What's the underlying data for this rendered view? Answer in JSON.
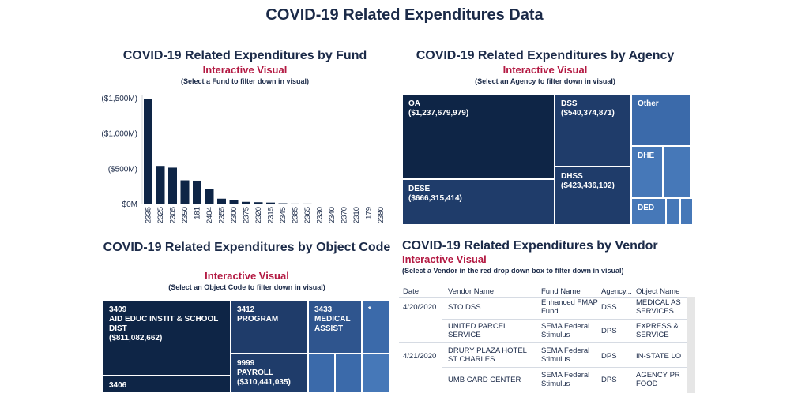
{
  "title": "COVID-19 Related Expenditures Data",
  "fund": {
    "title": "COVID-19 Related Expenditures by Fund",
    "interactive": "Interactive Visual",
    "hint": "(Select a Fund to filter down in visual)"
  },
  "agency": {
    "title": "COVID-19 Related Expenditures by Agency",
    "interactive": "Interactive Visual",
    "hint": "(Select an Agency to filter down in visual)",
    "tiles": [
      {
        "name": "OA",
        "amount": "($1,237,679,979)"
      },
      {
        "name": "DSS",
        "amount": "($540,374,871)"
      },
      {
        "name": "Other",
        "amount": ""
      },
      {
        "name": "DHSS",
        "amount": "($423,436,102)"
      },
      {
        "name": "DESE",
        "amount": "($666,315,414)"
      },
      {
        "name": "DHE",
        "amount": ""
      },
      {
        "name": "DED",
        "amount": ""
      }
    ]
  },
  "object": {
    "title": "COVID-19 Related Expenditures by Object Code",
    "interactive": "Interactive Visual",
    "hint": "(Select an Object Code to filter down in visual)",
    "tiles": [
      {
        "code": "3409",
        "name": "AID EDUC INSTIT & SCHOOL DIST",
        "amount": "($811,082,662)"
      },
      {
        "code": "3412",
        "name": "PROGRAM",
        "amount": ""
      },
      {
        "code": "3433",
        "name": "MEDICAL ASSIST",
        "amount": ""
      },
      {
        "code": "*",
        "name": "",
        "amount": ""
      },
      {
        "code": "9999",
        "name": "PAYROLL",
        "amount": "($310,441,035)"
      },
      {
        "code": "3406",
        "name": "",
        "amount": ""
      }
    ]
  },
  "vendor": {
    "title": "COVID-19 Related Expenditures by Vendor",
    "interactive": "Interactive Visual",
    "hint": "(Select a Vendor in the red drop down box to filter down in visual)",
    "columns": [
      "Date",
      "Vendor Name",
      "Fund Name",
      "Agency...",
      "Object Name"
    ],
    "rows": [
      {
        "date": "4/20/2020",
        "vendor": "STO DSS",
        "fund": "Enhanced FMAP Fund",
        "agency": "DSS",
        "object": "MEDICAL AS SERVICES"
      },
      {
        "date": "",
        "vendor": "UNITED PARCEL SERVICE",
        "fund": "SEMA Federal Stimulus",
        "agency": "DPS",
        "object": "EXPRESS & SERVICE"
      },
      {
        "date": "4/21/2020",
        "vendor": "DRURY PLAZA HOTEL ST CHARLES",
        "fund": "SEMA Federal Stimulus",
        "agency": "DPS",
        "object": "IN-STATE LO"
      },
      {
        "date": "",
        "vendor": "UMB CARD CENTER",
        "fund": "SEMA Federal Stimulus",
        "agency": "DPS",
        "object": "AGENCY PR FOOD"
      }
    ]
  },
  "chart_data": {
    "type": "bar",
    "title": "COVID-19 Related Expenditures by Fund",
    "categories": [
      "2335",
      "2325",
      "2305",
      "2350",
      "181",
      "2404",
      "2355",
      "2300",
      "2375",
      "2320",
      "2315",
      "2345",
      "2385",
      "2365",
      "2330",
      "2340",
      "2370",
      "2310",
      "179",
      "2380"
    ],
    "values": [
      1480,
      535,
      510,
      330,
      325,
      205,
      70,
      45,
      25,
      20,
      15,
      5,
      1,
      1,
      0,
      0,
      0,
      0,
      0,
      0
    ],
    "ylabel": "",
    "yticks": [
      "$0M",
      "($500M)",
      "($1,000M)",
      "($1,500M)"
    ],
    "ytick_values": [
      0,
      500,
      1000,
      1500
    ],
    "ylim": [
      0,
      1500
    ],
    "bar_color": "#0e2546"
  }
}
